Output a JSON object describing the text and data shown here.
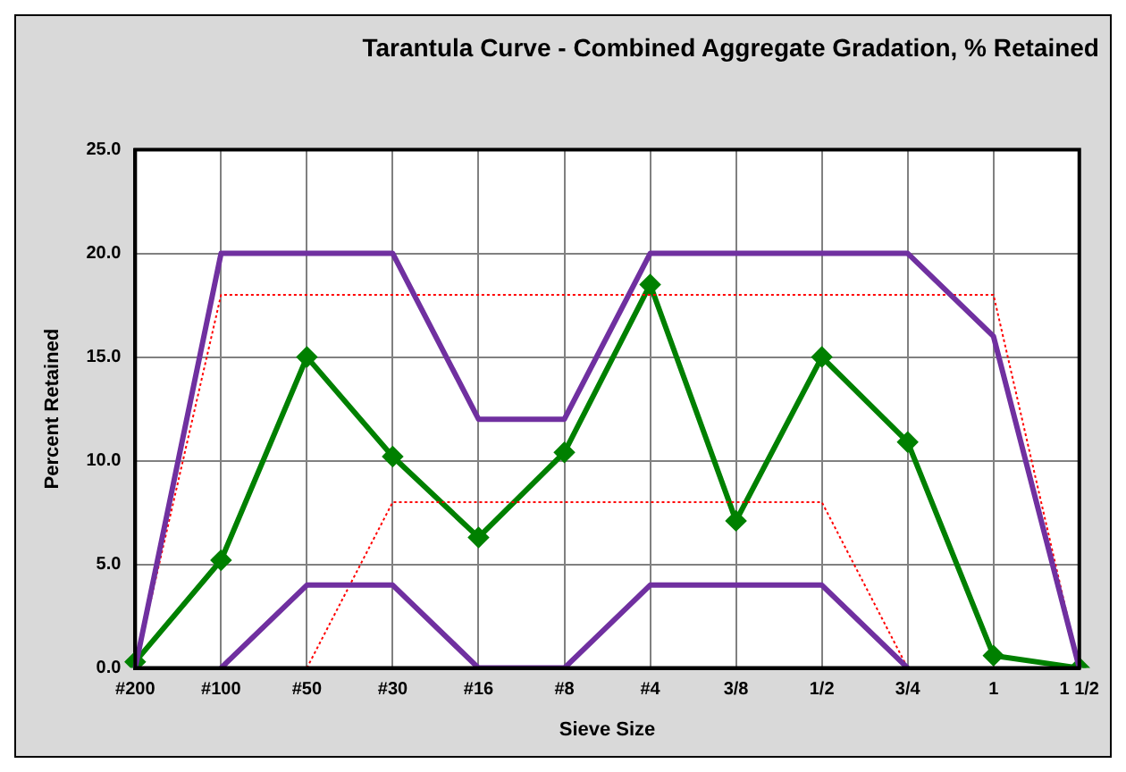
{
  "chart_data": {
    "type": "line",
    "title": "Tarantula Curve - Combined Aggregate Gradation, % Retained",
    "xlabel": "Sieve Size",
    "ylabel": "Percent Retained",
    "categories": [
      "#200",
      "#100",
      "#50",
      "#30",
      "#16",
      "#8",
      "#4",
      "3/8",
      "1/2",
      "3/4",
      "1",
      "1 1/2"
    ],
    "series": [
      {
        "color": "#7030a0",
        "marker": "none",
        "line_style": "solid",
        "values": [
          0,
          20,
          20,
          20,
          12,
          12,
          20,
          20,
          20,
          20,
          16,
          0
        ]
      },
      {
        "color": "#7030a0",
        "marker": "none",
        "line_style": "solid",
        "values": [
          null,
          0,
          4,
          4,
          0,
          0,
          4,
          4,
          4,
          0,
          null,
          null
        ]
      },
      {
        "color": "#ff0000",
        "marker": "none",
        "line_style": "dotted",
        "values": [
          0,
          18,
          18,
          18,
          18,
          18,
          18,
          18,
          18,
          18,
          18,
          0
        ]
      },
      {
        "color": "#ff0000",
        "marker": "none",
        "line_style": "dotted",
        "values": [
          null,
          null,
          0,
          8,
          8,
          8,
          8,
          8,
          8,
          0,
          null,
          null
        ]
      },
      {
        "color": "#008000",
        "marker": "diamond",
        "line_style": "solid",
        "values": [
          0.3,
          5.2,
          15.0,
          10.2,
          6.3,
          10.4,
          18.5,
          7.1,
          15.0,
          10.9,
          0.6,
          0.0
        ]
      }
    ],
    "ylim": [
      0,
      25
    ],
    "yticks": [
      {
        "value": 0,
        "label": "0.0"
      },
      {
        "value": 5,
        "label": "5.0"
      },
      {
        "value": 10,
        "label": "10.0"
      },
      {
        "value": 15,
        "label": "15.0"
      },
      {
        "value": 20,
        "label": "20.0"
      },
      {
        "value": 25,
        "label": "25.0"
      }
    ],
    "grid": true,
    "legend": false
  }
}
